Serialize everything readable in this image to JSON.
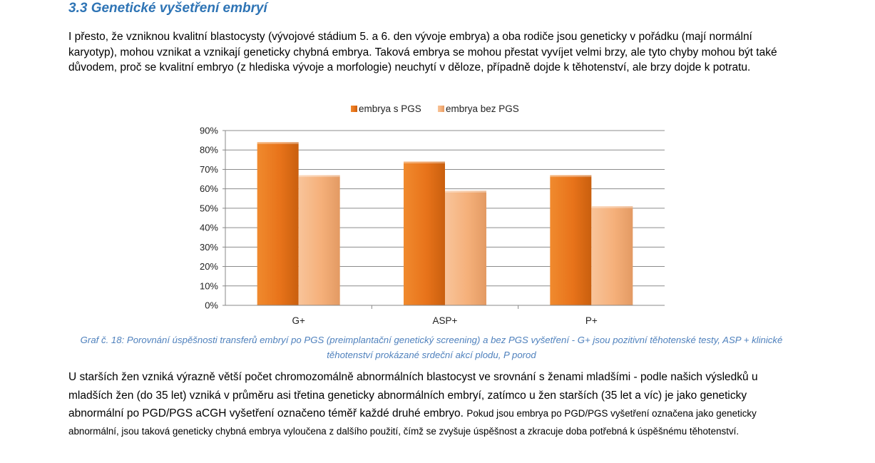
{
  "section_heading": "3.3 Genetické vyšetření embryí",
  "paragraph_intro": "I přesto, že vzniknou kvalitní blastocysty (vývojové stádium 5. a 6. den vývoje embrya) a oba rodiče jsou geneticky v pořádku (mají normální karyotyp), mohou vznikat a vznikají geneticky chybná embrya. Taková embrya se mohou přestat vyvíjet velmi brzy, ale tyto chyby mohou být také důvodem, proč se kvalitní embryo (z hlediska vývoje a morfologie) neuchytí v děloze, případně dojde k těhotenství, ale brzy dojde k potratu.",
  "chart_data": {
    "type": "bar",
    "categories": [
      "G+",
      "ASP+",
      "P+"
    ],
    "series": [
      {
        "name": "embrya s PGS",
        "values": [
          84,
          74,
          67
        ],
        "color": "#e8731a"
      },
      {
        "name": "embrya bez PGS",
        "values": [
          67,
          59,
          51
        ],
        "color": "#f5b07a"
      }
    ],
    "y_ticks": [
      "0%",
      "10%",
      "20%",
      "30%",
      "40%",
      "50%",
      "60%",
      "70%",
      "80%",
      "90%"
    ],
    "ylim": [
      0,
      90
    ],
    "legend_position": "top",
    "grid": true
  },
  "caption": "Graf č. 18: Porovnání úspěšnosti transferů embryí po PGS (preimplantační genetický screening) a bez PGS vyšetření - G+ jsou pozitivní těhotenské testy, ASP + klinické těhotenství prokázané srdeční akcí plodu, P porod",
  "paragraph_main_large": "U starších žen vzniká výrazně větší počet chromozomálně abnormálních blastocyst ve srovnání s ženami mladšími - podle našich výsledků u mladších žen (do 35 let) vzniká v průměru asi třetina geneticky abnormálních embryí, zatímco u žen starších (35 let a víc) je jako geneticky abnormální po PGD/PGS aCGH vyšetření označeno téměř každé druhé embryo.",
  "paragraph_main_small": "Pokud jsou embrya po PGD/PGS vyšetření označena jako geneticky abnormální, jsou taková geneticky chybná embrya vyloučena z dalšího použití, čímž se zvyšuje úspěšnost a zkracuje doba potřebná k úspěšnému těhotenství."
}
